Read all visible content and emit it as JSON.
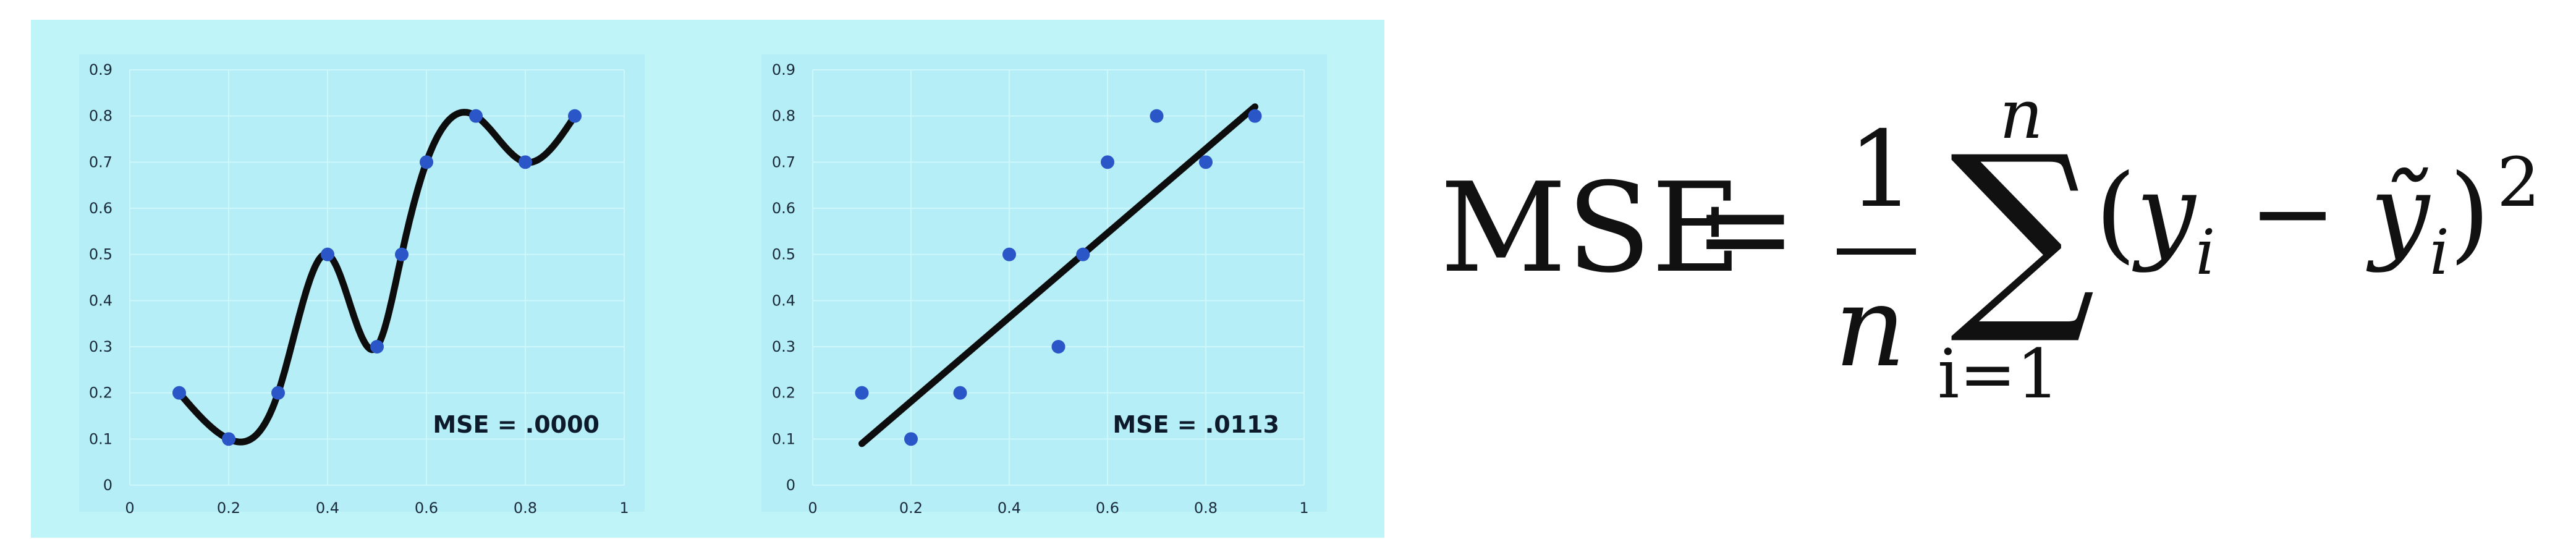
{
  "background_color": "#bff4f8",
  "plot_area_color": "#b5eef6",
  "point_color": "#2a56c8",
  "line_color": "#0d0d0d",
  "chart_data": [
    {
      "type": "scatter",
      "fit": "smooth-interpolation",
      "x": [
        0.1,
        0.2,
        0.3,
        0.4,
        0.5,
        0.55,
        0.6,
        0.7,
        0.8,
        0.9
      ],
      "y": [
        0.2,
        0.1,
        0.2,
        0.5,
        0.3,
        0.5,
        0.7,
        0.8,
        0.7,
        0.8
      ],
      "xlim": [
        0,
        1
      ],
      "ylim": [
        0,
        0.9
      ],
      "xticks": [
        "0",
        "0.2",
        "0.4",
        "0.6",
        "0.8",
        "1"
      ],
      "yticks": [
        "0",
        "0.1",
        "0.2",
        "0.3",
        "0.4",
        "0.5",
        "0.6",
        "0.7",
        "0.8",
        "0.9"
      ],
      "annotation": "MSE = .0000",
      "grid": true
    },
    {
      "type": "scatter",
      "fit": "linear",
      "x": [
        0.1,
        0.2,
        0.3,
        0.4,
        0.5,
        0.55,
        0.6,
        0.7,
        0.8,
        0.9
      ],
      "y": [
        0.2,
        0.1,
        0.2,
        0.5,
        0.3,
        0.5,
        0.7,
        0.8,
        0.7,
        0.8
      ],
      "line": {
        "x": [
          0.1,
          0.9
        ],
        "y": [
          0.09,
          0.82
        ]
      },
      "xlim": [
        0,
        1
      ],
      "ylim": [
        0,
        0.9
      ],
      "xticks": [
        "0",
        "0.2",
        "0.4",
        "0.6",
        "0.8",
        "1"
      ],
      "yticks": [
        "0",
        "0.1",
        "0.2",
        "0.3",
        "0.4",
        "0.5",
        "0.6",
        "0.7",
        "0.8",
        "0.9"
      ],
      "annotation": "MSE = .0113",
      "grid": true
    }
  ],
  "formula": {
    "lhs": "MSE",
    "equals": "=",
    "numerator": "1",
    "denominator": "n",
    "sum_symbol": "∑",
    "sum_upper": "n",
    "sum_lower": "i=1",
    "open_paren": "(",
    "y": "y",
    "sub_i": "i",
    "minus": "−",
    "y_tilde": "ỹ",
    "close_paren": ")",
    "exponent": "2"
  }
}
